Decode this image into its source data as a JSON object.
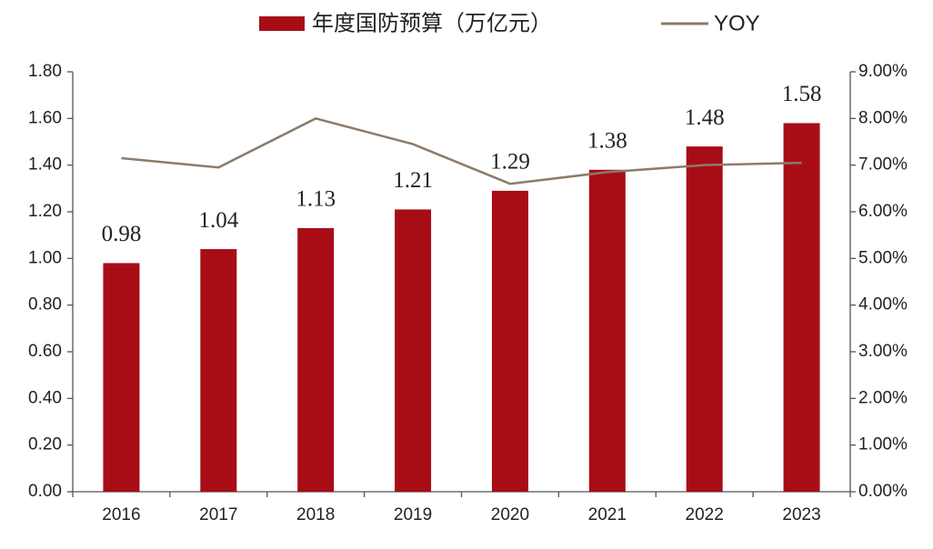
{
  "chart_data": {
    "type": "bar-line",
    "categories": [
      "2016",
      "2017",
      "2018",
      "2019",
      "2020",
      "2021",
      "2022",
      "2023"
    ],
    "series": [
      {
        "name": "年度国防预算（万亿元）",
        "type": "bar",
        "color": "#a80d16",
        "values": [
          0.98,
          1.04,
          1.13,
          1.21,
          1.29,
          1.38,
          1.48,
          1.58
        ]
      },
      {
        "name": "YOY",
        "type": "line",
        "axis": "y2",
        "color": "#8c7b6b",
        "values": [
          7.15,
          6.95,
          8.0,
          7.45,
          6.6,
          6.85,
          7.0,
          7.05
        ]
      }
    ],
    "ylim": [
      0,
      1.8
    ],
    "yticks": [
      {
        "value": 0,
        "label": "0.00"
      },
      {
        "value": 0.2,
        "label": "0.20"
      },
      {
        "value": 0.4,
        "label": "0.40"
      },
      {
        "value": 0.6,
        "label": "0.60"
      },
      {
        "value": 0.8,
        "label": "0.80"
      },
      {
        "value": 1,
        "label": "1.00"
      },
      {
        "value": 1.2,
        "label": "1.20"
      },
      {
        "value": 1.4,
        "label": "1.40"
      },
      {
        "value": 1.6,
        "label": "1.60"
      },
      {
        "value": 1.8,
        "label": "1.80"
      }
    ],
    "y2lim": [
      0,
      9
    ],
    "y2ticks": [
      {
        "value": 0,
        "label": "0.00%"
      },
      {
        "value": 1,
        "label": "1.00%"
      },
      {
        "value": 2,
        "label": "2.00%"
      },
      {
        "value": 3,
        "label": "3.00%"
      },
      {
        "value": 4,
        "label": "4.00%"
      },
      {
        "value": 5,
        "label": "5.00%"
      },
      {
        "value": 6,
        "label": "6.00%"
      },
      {
        "value": 7,
        "label": "7.00%"
      },
      {
        "value": 8,
        "label": "8.00%"
      },
      {
        "value": 9,
        "label": "9.00%"
      }
    ],
    "grid": false,
    "legend": "top"
  }
}
